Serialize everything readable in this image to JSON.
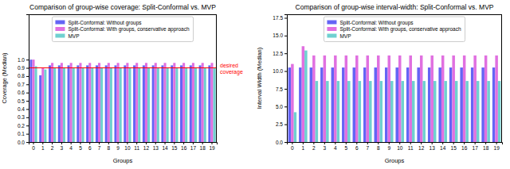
{
  "chart_data": [
    {
      "type": "bar",
      "title": "Comparison of group-wise coverage: Split-Conformal vs. MVP",
      "x_label": "Groups",
      "y_label": "Coverage (Median)",
      "categories": [
        "0",
        "1",
        "2",
        "3",
        "4",
        "5",
        "6",
        "7",
        "8",
        "9",
        "10",
        "11",
        "12",
        "13",
        "14",
        "15",
        "16",
        "17",
        "18",
        "19"
      ],
      "series": [
        {
          "name": "Split-Conformal: Without groups",
          "color": "#6464f5",
          "values": [
            1.0,
            0.81,
            0.93,
            0.93,
            0.93,
            0.93,
            0.93,
            0.93,
            0.93,
            0.93,
            0.93,
            0.93,
            0.93,
            0.93,
            0.93,
            0.93,
            0.93,
            0.93,
            0.93,
            0.93
          ]
        },
        {
          "name": "Split-Conformal: With groups, conservative approach",
          "color": "#e070e0",
          "values": [
            1.0,
            0.9,
            0.96,
            0.96,
            0.96,
            0.96,
            0.96,
            0.96,
            0.96,
            0.96,
            0.96,
            0.96,
            0.96,
            0.96,
            0.96,
            0.96,
            0.96,
            0.96,
            0.96,
            0.96
          ]
        },
        {
          "name": "MVP",
          "color": "#6fd0d0",
          "values": [
            0.92,
            0.88,
            0.9,
            0.9,
            0.9,
            0.9,
            0.9,
            0.9,
            0.9,
            0.9,
            0.9,
            0.9,
            0.9,
            0.9,
            0.9,
            0.9,
            0.9,
            0.9,
            0.9,
            0.9
          ]
        }
      ],
      "ylim": [
        0,
        1.55
      ],
      "yticks": [
        {
          "value": 0,
          "label": "0.0"
        },
        {
          "value": 0.1,
          "label": "0.1"
        },
        {
          "value": 0.2,
          "label": "0.2"
        },
        {
          "value": 0.3,
          "label": "0.3"
        },
        {
          "value": 0.4,
          "label": "0.4"
        },
        {
          "value": 0.5,
          "label": "0.5"
        },
        {
          "value": 0.6,
          "label": "0.6"
        },
        {
          "value": 0.7,
          "label": "0.7"
        },
        {
          "value": 0.8,
          "label": "0.8"
        },
        {
          "value": 0.9,
          "label": "0.9"
        },
        {
          "value": 1.0,
          "label": "1.0"
        }
      ],
      "reference_line": {
        "value": 0.9,
        "label": "desired coverage",
        "color": "#ff0000"
      },
      "legend": "upper center",
      "grid": false
    },
    {
      "type": "bar",
      "title": "Comparison of group-wise interval-width: Split-Conformal vs. MVP",
      "x_label": "Groups",
      "y_label": "Interval Width (Median)",
      "categories": [
        "0",
        "1",
        "2",
        "3",
        "4",
        "5",
        "6",
        "7",
        "8",
        "9",
        "10",
        "11",
        "12",
        "13",
        "14",
        "15",
        "16",
        "17",
        "18",
        "19"
      ],
      "series": [
        {
          "name": "Split-Conformal: Without groups",
          "color": "#6464f5",
          "values": [
            10.5,
            10.5,
            10.5,
            10.5,
            10.5,
            10.5,
            10.5,
            10.5,
            10.5,
            10.5,
            10.5,
            10.5,
            10.5,
            10.5,
            10.5,
            10.5,
            10.5,
            10.5,
            10.5,
            10.5
          ]
        },
        {
          "name": "Split-Conformal: With groups, conservative approach",
          "color": "#e070e0",
          "values": [
            11.0,
            13.5,
            12.2,
            12.2,
            12.2,
            12.2,
            12.2,
            12.2,
            12.2,
            12.2,
            12.2,
            12.2,
            12.2,
            12.2,
            12.2,
            12.2,
            12.2,
            12.2,
            12.2,
            12.2
          ]
        },
        {
          "name": "MVP",
          "color": "#6fd0d0",
          "values": [
            4.2,
            12.9,
            8.6,
            8.6,
            8.6,
            8.6,
            8.6,
            8.6,
            8.6,
            8.6,
            8.6,
            8.6,
            8.6,
            8.6,
            8.6,
            8.6,
            8.6,
            8.6,
            8.6,
            8.6
          ]
        }
      ],
      "ylim": [
        0,
        18
      ],
      "yticks": [
        {
          "value": 0,
          "label": "0.0"
        },
        {
          "value": 2.5,
          "label": "2.5"
        },
        {
          "value": 5,
          "label": "5.0"
        },
        {
          "value": 7.5,
          "label": "7.5"
        },
        {
          "value": 10,
          "label": "10.0"
        },
        {
          "value": 12.5,
          "label": "12.5"
        },
        {
          "value": 15,
          "label": "15.0"
        },
        {
          "value": 17.5,
          "label": "17.5"
        }
      ],
      "legend": "upper center",
      "grid": false
    }
  ]
}
